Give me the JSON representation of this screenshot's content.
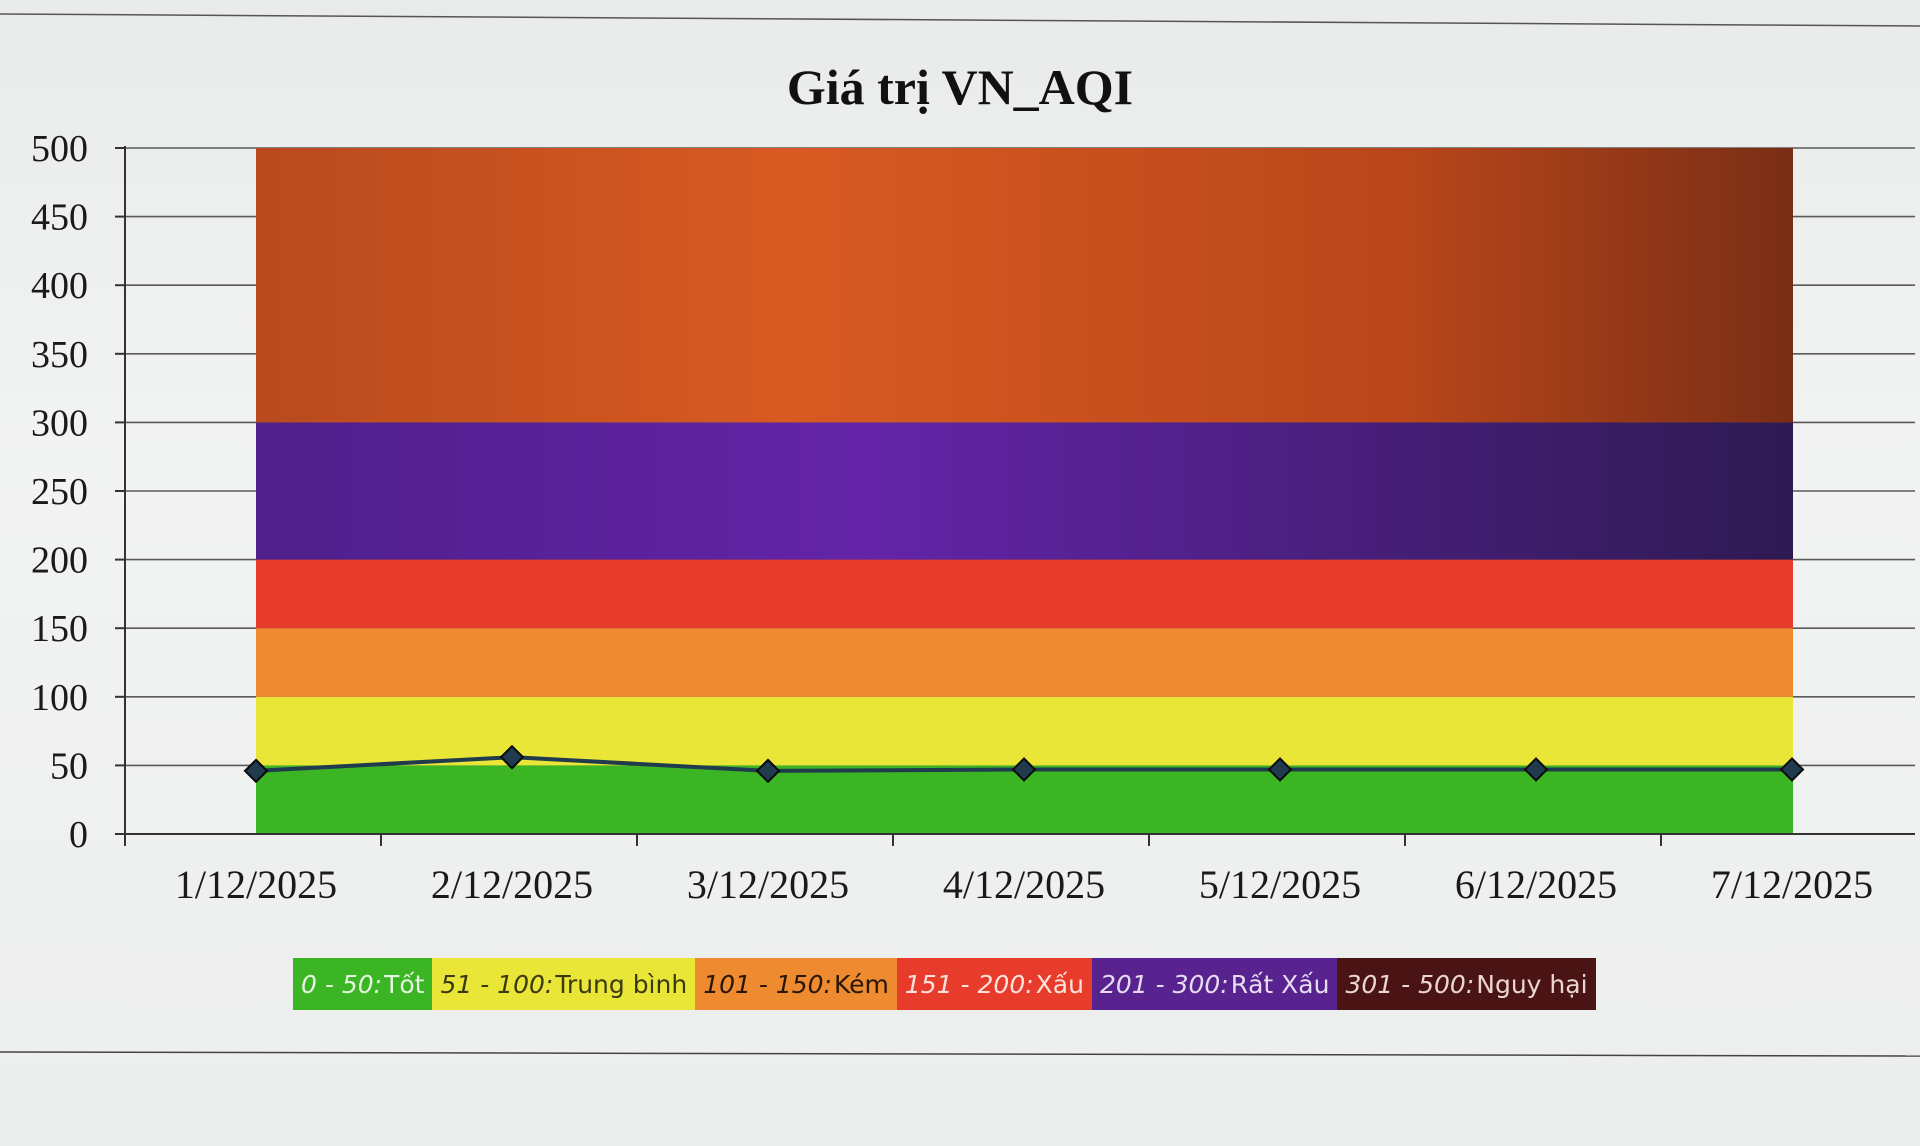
{
  "chart_data": {
    "type": "line",
    "title": "Giá trị VN_AQI",
    "xlabel": "",
    "ylabel": "",
    "categories": [
      "1/12/2025",
      "2/12/2025",
      "3/12/2025",
      "4/12/2025",
      "5/12/2025",
      "6/12/2025",
      "7/12/2025"
    ],
    "series": [
      {
        "values": [
          46,
          56,
          46,
          47,
          47,
          47,
          47
        ],
        "color": "#1f3b4d"
      }
    ],
    "ylim": [
      0,
      500
    ],
    "yticks": [
      "0",
      "50",
      "100",
      "150",
      "200",
      "250",
      "300",
      "350",
      "400",
      "450",
      "500"
    ],
    "grid": true,
    "bands": [
      {
        "from": 0,
        "to": 50,
        "range": "0 - 50:",
        "label": "Tốt",
        "color": "#3cb524",
        "text_color": "#e6f5df"
      },
      {
        "from": 50,
        "to": 100,
        "range": "51 - 100:",
        "label": "Trung bình",
        "color": "#eae638",
        "text_color": "#3a3a10"
      },
      {
        "from": 100,
        "to": 150,
        "range": "101 - 150:",
        "label": "Kém",
        "color": "#ee8a30",
        "text_color": "#2a1608"
      },
      {
        "from": 150,
        "to": 200,
        "range": "151 - 200:",
        "label": "Xấu",
        "color": "#e73b2b",
        "text_color": "#fde2dc"
      },
      {
        "from": 200,
        "to": 300,
        "range": "201 - 300:",
        "label": "Rất Xấu",
        "color": "#58228f",
        "text_color": "#e6dcf2"
      },
      {
        "from": 300,
        "to": 500,
        "range": "301 - 500:",
        "label": "Nguy hại",
        "color": "#c95020",
        "text_color": "#ead6cf",
        "legend_color": "#4a1414"
      }
    ],
    "legend_position": "bottom"
  }
}
